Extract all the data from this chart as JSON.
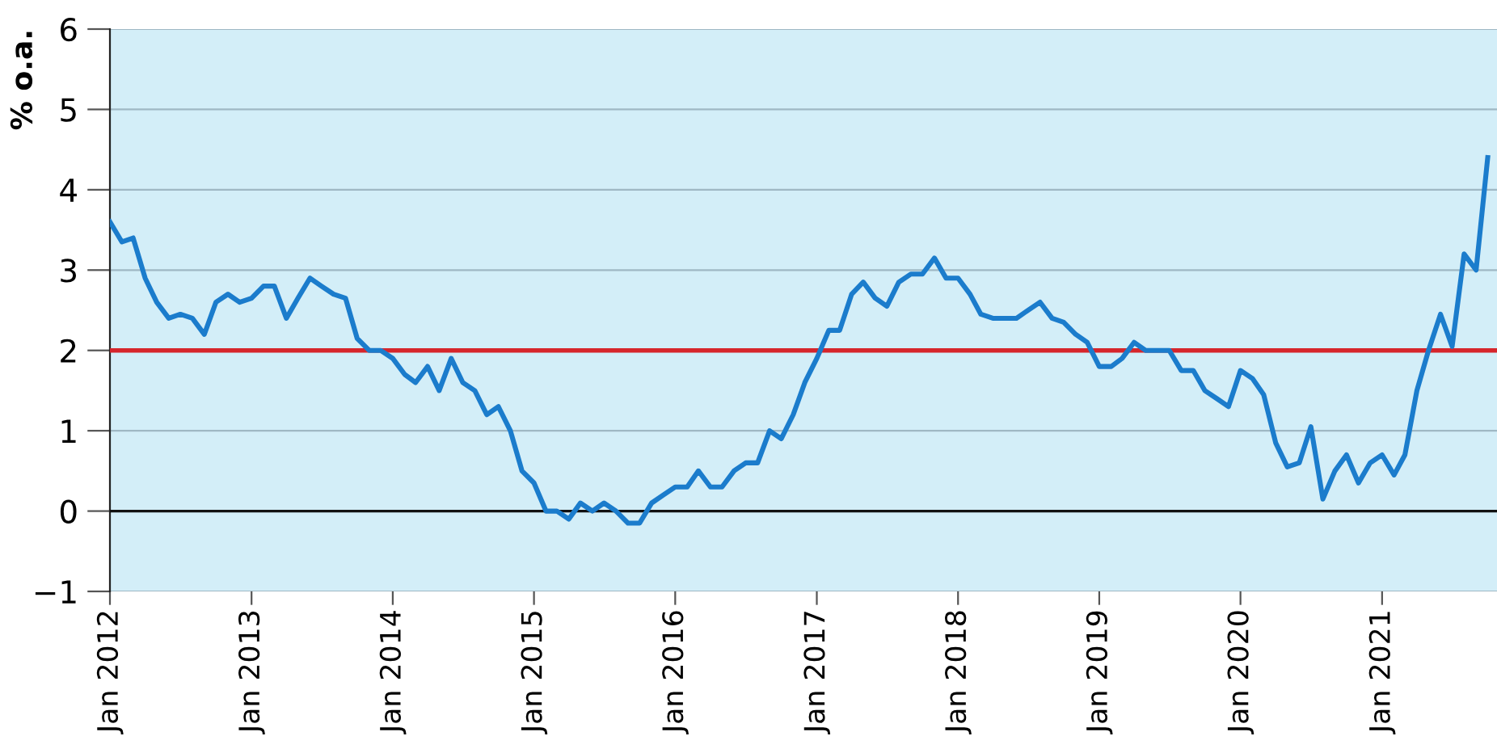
{
  "chart_data": {
    "type": "line",
    "ylabel": "% o.a.",
    "x": [
      "2012-01",
      "2012-02",
      "2012-03",
      "2012-04",
      "2012-05",
      "2012-06",
      "2012-07",
      "2012-08",
      "2012-09",
      "2012-10",
      "2012-11",
      "2012-12",
      "2013-01",
      "2013-02",
      "2013-03",
      "2013-04",
      "2013-05",
      "2013-06",
      "2013-07",
      "2013-08",
      "2013-09",
      "2013-10",
      "2013-11",
      "2013-12",
      "2014-01",
      "2014-02",
      "2014-03",
      "2014-04",
      "2014-05",
      "2014-06",
      "2014-07",
      "2014-08",
      "2014-09",
      "2014-10",
      "2014-11",
      "2014-12",
      "2015-01",
      "2015-02",
      "2015-03",
      "2015-04",
      "2015-05",
      "2015-06",
      "2015-07",
      "2015-08",
      "2015-09",
      "2015-10",
      "2015-11",
      "2015-12",
      "2016-01",
      "2016-02",
      "2016-03",
      "2016-04",
      "2016-05",
      "2016-06",
      "2016-07",
      "2016-08",
      "2016-09",
      "2016-10",
      "2016-11",
      "2016-12",
      "2017-01",
      "2017-02",
      "2017-03",
      "2017-04",
      "2017-05",
      "2017-06",
      "2017-07",
      "2017-08",
      "2017-09",
      "2017-10",
      "2017-11",
      "2017-12",
      "2018-01",
      "2018-02",
      "2018-03",
      "2018-04",
      "2018-05",
      "2018-06",
      "2018-07",
      "2018-08",
      "2018-09",
      "2018-10",
      "2018-11",
      "2018-12",
      "2019-01",
      "2019-02",
      "2019-03",
      "2019-04",
      "2019-05",
      "2019-06",
      "2019-07",
      "2019-08",
      "2019-09",
      "2019-10",
      "2019-11",
      "2019-12",
      "2020-01",
      "2020-02",
      "2020-03",
      "2020-04",
      "2020-05",
      "2020-06",
      "2020-07",
      "2020-08",
      "2020-09",
      "2020-10",
      "2020-11",
      "2020-12",
      "2021-01",
      "2021-02",
      "2021-03",
      "2021-04",
      "2021-05",
      "2021-06",
      "2021-07",
      "2021-08",
      "2021-09",
      "2021-10"
    ],
    "series": [
      {
        "color": "#1b7ccc",
        "values": [
          3.6,
          3.35,
          3.4,
          2.9,
          2.6,
          2.4,
          2.45,
          2.4,
          2.2,
          2.6,
          2.7,
          2.6,
          2.65,
          2.8,
          2.8,
          2.4,
          2.65,
          2.9,
          2.8,
          2.7,
          2.65,
          2.15,
          2.0,
          2.0,
          1.9,
          1.7,
          1.6,
          1.8,
          1.5,
          1.9,
          1.6,
          1.5,
          1.2,
          1.3,
          1.0,
          0.5,
          0.35,
          0.0,
          0.0,
          -0.1,
          0.1,
          0.0,
          0.1,
          0.0,
          -0.15,
          -0.15,
          0.1,
          0.2,
          0.3,
          0.3,
          0.5,
          0.3,
          0.3,
          0.5,
          0.6,
          0.6,
          1.0,
          0.9,
          1.2,
          1.6,
          1.9,
          2.25,
          2.25,
          2.7,
          2.85,
          2.65,
          2.55,
          2.85,
          2.95,
          2.95,
          3.15,
          2.9,
          2.9,
          2.7,
          2.45,
          2.4,
          2.4,
          2.4,
          2.5,
          2.6,
          2.4,
          2.35,
          2.2,
          2.1,
          1.8,
          1.8,
          1.9,
          2.1,
          2.0,
          2.0,
          2.0,
          1.75,
          1.75,
          1.5,
          1.4,
          1.3,
          1.75,
          1.65,
          1.45,
          0.85,
          0.55,
          0.6,
          1.05,
          0.15,
          0.5,
          0.7,
          0.35,
          0.6,
          0.7,
          0.45,
          0.7,
          1.5,
          2.0,
          2.45,
          2.05,
          3.2,
          3.0,
          4.4
        ]
      }
    ],
    "xlim": [
      "2012-01",
      "2021-10-25"
    ],
    "xticks": [
      {
        "value": "2012-01",
        "label": "Jan 2012"
      },
      {
        "value": "2013-01",
        "label": "Jan 2013"
      },
      {
        "value": "2014-01",
        "label": "Jan 2014"
      },
      {
        "value": "2015-01",
        "label": "Jan 2015"
      },
      {
        "value": "2016-01",
        "label": "Jan 2016"
      },
      {
        "value": "2017-01",
        "label": "Jan 2017"
      },
      {
        "value": "2018-01",
        "label": "Jan 2018"
      },
      {
        "value": "2019-01",
        "label": "Jan 2019"
      },
      {
        "value": "2020-01",
        "label": "Jan 2020"
      },
      {
        "value": "2021-01",
        "label": "Jan 2021"
      }
    ],
    "ylim": [
      -1,
      6
    ],
    "yticks": [
      -1,
      0,
      1,
      2,
      3,
      4,
      5,
      6
    ],
    "grid": "y",
    "ref_lines": [
      {
        "axis": "y",
        "value": 0,
        "color": "#111111"
      },
      {
        "axis": "y",
        "value": 2,
        "color": "#d6262c"
      }
    ]
  }
}
